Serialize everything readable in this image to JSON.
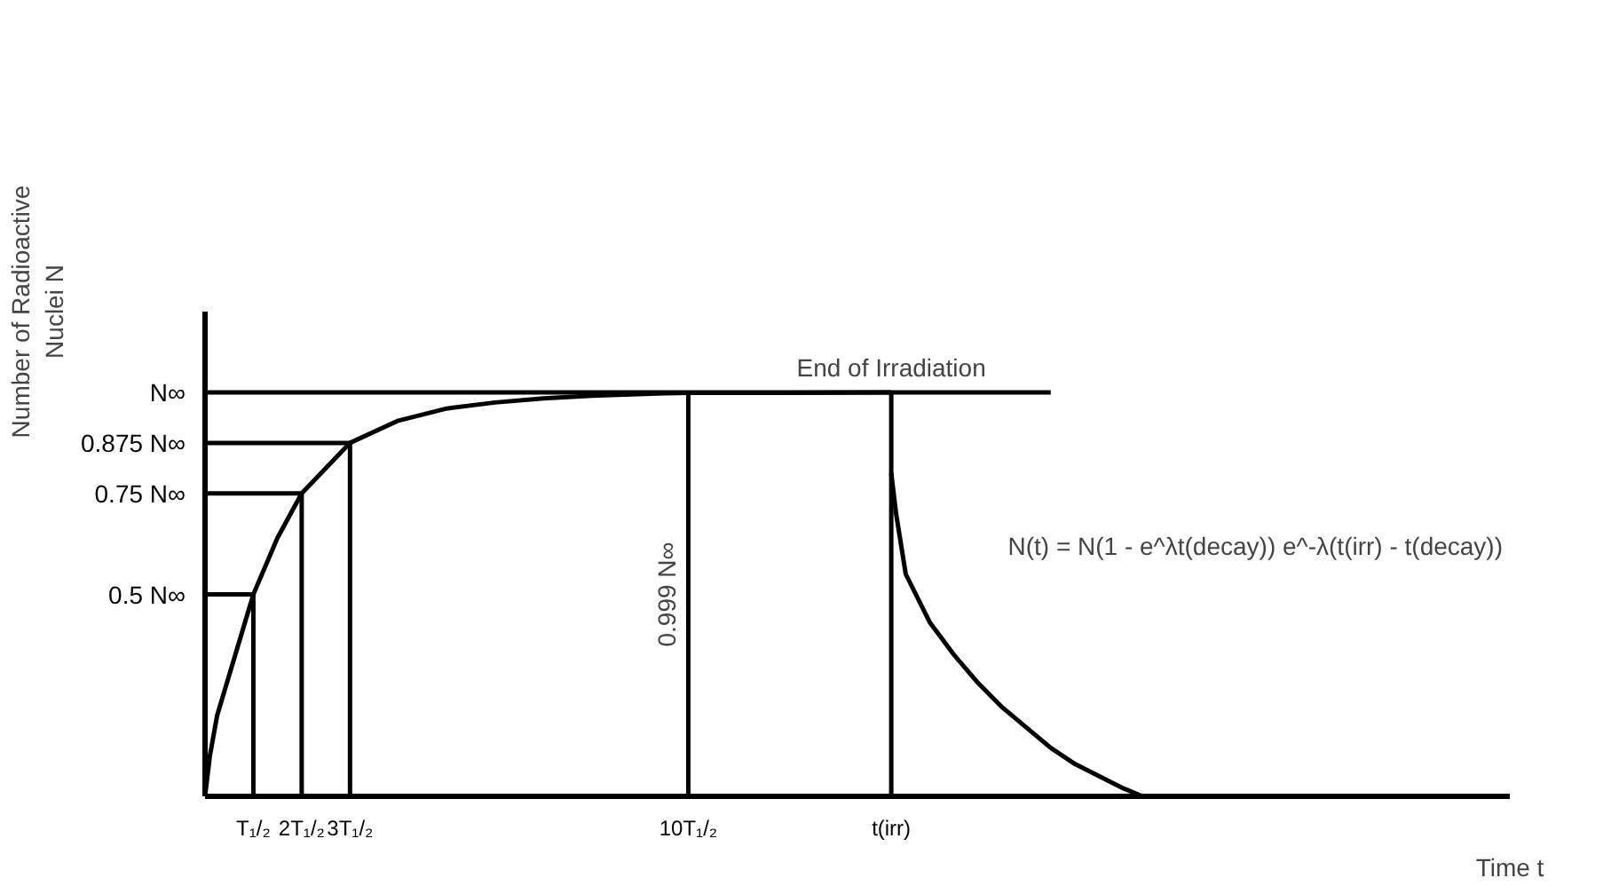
{
  "chart_data": {
    "type": "line",
    "ylabel": "Number of Radioactive Nuclei N",
    "xlabel": "Time t",
    "xlim": [
      0,
      27
    ],
    "ylim": [
      0,
      1.2
    ],
    "xticks": [
      {
        "value": 1,
        "label": "T₁/₂"
      },
      {
        "value": 2,
        "label": "2T₁/₂"
      },
      {
        "value": 3,
        "label": "3T₁/₂"
      },
      {
        "value": 10,
        "label": "10T₁/₂"
      },
      {
        "value": 14.2,
        "label": "t(irr)"
      }
    ],
    "yticks": [
      {
        "value": 0.5,
        "label": "0.5 N∞"
      },
      {
        "value": 0.75,
        "label": "0.75 N∞"
      },
      {
        "value": 0.875,
        "label": "0.875 N∞"
      },
      {
        "value": 1,
        "label": "N∞"
      }
    ],
    "grid": false,
    "marker": "none",
    "line_style": "solid",
    "series": [
      {
        "color": "#000000",
        "x": [
          0,
          0.1,
          0.25,
          0.5,
          1,
          1.5,
          2,
          3,
          4,
          5,
          6,
          7,
          8,
          9.5,
          10,
          12,
          14.2
        ],
        "values": [
          0,
          0.1,
          0.2,
          0.3,
          0.5,
          0.64,
          0.75,
          0.875,
          0.93,
          0.96,
          0.975,
          0.985,
          0.992,
          0.998,
          0.999,
          0.999,
          1
        ]
      },
      {
        "color": "#000000",
        "x": [
          14.2,
          14.3,
          14.5,
          15,
          15.5,
          16,
          16.5,
          17,
          17.5,
          18,
          18.5,
          19,
          19.4
        ],
        "values": [
          0.8,
          0.7,
          0.55,
          0.43,
          0.35,
          0.28,
          0.22,
          0.17,
          0.12,
          0.08,
          0.05,
          0.02,
          0
        ]
      },
      {
        "color": "#000000",
        "x": [
          0,
          17.5
        ],
        "values": [
          1,
          1
        ]
      },
      {
        "color": "#000000",
        "x": [
          0,
          1,
          1
        ],
        "values": [
          0.5,
          0.5,
          0
        ]
      },
      {
        "color": "#000000",
        "x": [
          0,
          2,
          2
        ],
        "values": [
          0.75,
          0.75,
          0
        ]
      },
      {
        "color": "#000000",
        "x": [
          0,
          3,
          3
        ],
        "values": [
          0.875,
          0.875,
          0
        ]
      },
      {
        "color": "#000000",
        "x": [
          10,
          10
        ],
        "values": [
          0,
          0.999
        ]
      },
      {
        "color": "#000000",
        "x": [
          14.2,
          14.2
        ],
        "values": [
          0,
          1
        ]
      }
    ],
    "annotations": [
      {
        "text": "End of Irradiation",
        "x": 14.2,
        "y": 1
      },
      {
        "text": "0.999 N∞",
        "x": 10,
        "y": 0.5
      },
      "N(t) = N(1 - e^λt(decay)) e^-λ(t(irr) - t(decay))"
    ]
  }
}
